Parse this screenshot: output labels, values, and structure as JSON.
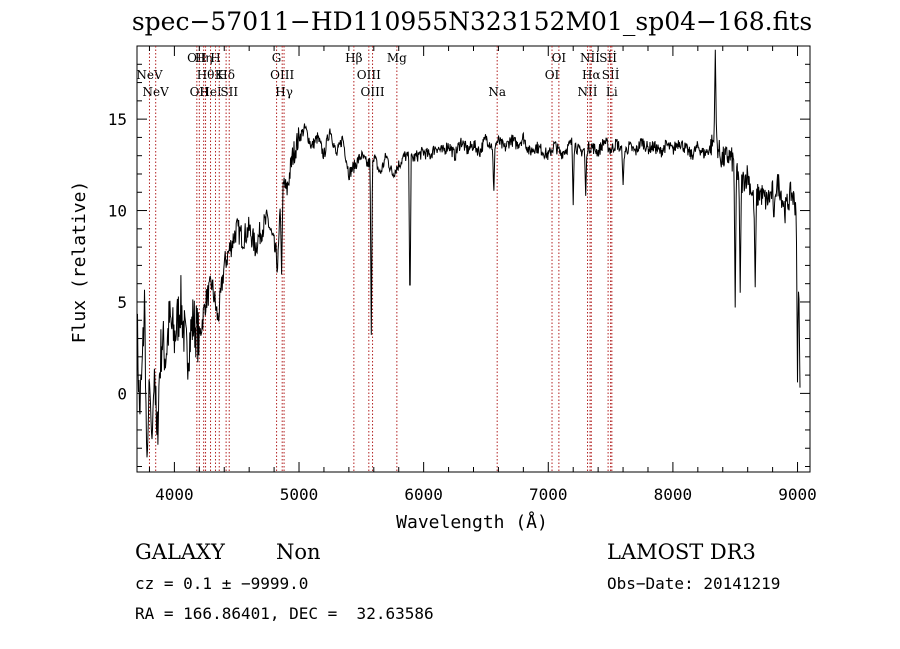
{
  "chart_data": {
    "type": "line",
    "title": "spec−57011−HD110955N323152M01_sp04−168.fits",
    "xlabel": "Wavelength (Å)",
    "ylabel": "Flux (relative)",
    "xlim": [
      3700,
      9100
    ],
    "ylim": [
      -4.3,
      19.0
    ],
    "xticks": [
      4000,
      5000,
      6000,
      7000,
      8000,
      9000
    ],
    "xtick_labels": [
      "4000",
      "5000",
      "6000",
      "7000",
      "8000",
      "9000"
    ],
    "yticks": [
      0,
      5,
      10,
      15
    ],
    "ytick_labels": [
      "0",
      "5",
      "10",
      "15"
    ],
    "grid": false,
    "line_color": "#000000",
    "marker_color": "#b22222",
    "series": [
      {
        "x": [
          3700,
          3720,
          3740,
          3760,
          3780,
          3800,
          3820,
          3840,
          3860,
          3880,
          3900,
          3930,
          3960,
          4000,
          4050,
          4100,
          4150,
          4200,
          4250,
          4300,
          4350,
          4400,
          4450,
          4500,
          4550,
          4600,
          4650,
          4700,
          4750,
          4800,
          4830,
          4850,
          4880,
          4900,
          4950,
          5000,
          5050,
          5100,
          5150,
          5200,
          5250,
          5300,
          5350,
          5400,
          5450,
          5500,
          5550,
          5600,
          5650,
          5700,
          5750,
          5800,
          5850,
          5900,
          5950,
          6000,
          6050,
          6100,
          6150,
          6200,
          6250,
          6300,
          6350,
          6400,
          6450,
          6500,
          6550,
          6600,
          6650,
          6700,
          6750,
          6800,
          6850,
          6900,
          6950,
          7000,
          7050,
          7100,
          7150,
          7200,
          7250,
          7300,
          7350,
          7400,
          7450,
          7500,
          7550,
          7600,
          7650,
          7700,
          7750,
          7800,
          7850,
          7900,
          7950,
          8000,
          8050,
          8100,
          8150,
          8200,
          8250,
          8300,
          8340,
          8380,
          8400,
          8450,
          8500,
          8550,
          8600,
          8650,
          8700,
          8750,
          8800,
          8850,
          8900,
          8950,
          9000,
          9010,
          9020
        ],
        "y": [
          4,
          -1,
          1,
          5,
          -3,
          0,
          -2,
          2,
          -3,
          1,
          3,
          2,
          4,
          3,
          5,
          2,
          4,
          3,
          5,
          6,
          4,
          7,
          8,
          9,
          8.5,
          9,
          8,
          9,
          9.5,
          8,
          7,
          10,
          11.5,
          11,
          13,
          14,
          14.5,
          13.5,
          14,
          13,
          14.5,
          13,
          14,
          12,
          12.5,
          13,
          12.5,
          13,
          12,
          13,
          12,
          12.5,
          13,
          12.8,
          13,
          13.2,
          13,
          13.5,
          13.2,
          13.6,
          13,
          13.8,
          13.3,
          13.6,
          13.2,
          14,
          13.5,
          13.8,
          13.4,
          13.9,
          13.6,
          14,
          13.2,
          13.5,
          13.3,
          13,
          13.6,
          13.1,
          13.4,
          13.8,
          13.2,
          13.4,
          13.5,
          13.2,
          13.8,
          13.3,
          13.7,
          13.1,
          13.5,
          13.2,
          13.8,
          13.4,
          13.5,
          13.2,
          13.6,
          13.3,
          13.8,
          13.4,
          13,
          13.5,
          13.1,
          13.4,
          14,
          13,
          12.8,
          13,
          12.5,
          11.5,
          12,
          10.5,
          11,
          10.5,
          11,
          11.5,
          10,
          11,
          10,
          6,
          0
        ]
      }
    ],
    "dips": [
      {
        "x": 3780,
        "y": -3.5
      },
      {
        "x": 3820,
        "y": -2.5
      },
      {
        "x": 4860,
        "y": 6.5
      },
      {
        "x": 5580,
        "y": 3.2
      },
      {
        "x": 5890,
        "y": 4.2
      },
      {
        "x": 6563,
        "y": 10.8
      },
      {
        "x": 7200,
        "y": 10.3
      },
      {
        "x": 7300,
        "y": 10.8
      },
      {
        "x": 7600,
        "y": 11.4
      },
      {
        "x": 8340,
        "y": 18.8
      },
      {
        "x": 8500,
        "y": 4.7
      },
      {
        "x": 8540,
        "y": 5.5
      },
      {
        "x": 8660,
        "y": 5.8
      },
      {
        "x": 8810,
        "y": 9.3
      },
      {
        "x": 9000,
        "y": 0.6
      }
    ],
    "line_markers": [
      {
        "x": 3800,
        "label": "NeV",
        "tier": 1
      },
      {
        "x": 3850,
        "label": "NeV",
        "tier": 2
      },
      {
        "x": 4180,
        "label": "OII",
        "tier": 0
      },
      {
        "x": 4200,
        "label": "OII",
        "tier": 2
      },
      {
        "x": 4235,
        "label": "Hη",
        "tier": 0
      },
      {
        "x": 4250,
        "label": "Hθ",
        "tier": 1
      },
      {
        "x": 4290,
        "label": "HeI",
        "tier": 2
      },
      {
        "x": 4330,
        "label": "H",
        "tier": 0
      },
      {
        "x": 4360,
        "label": "K",
        "tier": 1
      },
      {
        "x": 4415,
        "label": "Hδ",
        "tier": 1
      },
      {
        "x": 4440,
        "label": "SII",
        "tier": 2
      },
      {
        "x": 4820,
        "label": "G",
        "tier": 0
      },
      {
        "x": 4865,
        "label": "OIII",
        "tier": 1
      },
      {
        "x": 4880,
        "label": "Hγ",
        "tier": 2
      },
      {
        "x": 5440,
        "label": "Hβ",
        "tier": 0
      },
      {
        "x": 5560,
        "label": "OIII",
        "tier": 1
      },
      {
        "x": 5590,
        "label": "OIII",
        "tier": 2
      },
      {
        "x": 5785,
        "label": "Mg",
        "tier": 0
      },
      {
        "x": 6590,
        "label": "Na",
        "tier": 2
      },
      {
        "x": 7030,
        "label": "OI",
        "tier": 1
      },
      {
        "x": 7085,
        "label": "OI",
        "tier": 0
      },
      {
        "x": 7315,
        "label": "Nİİ",
        "tier": 2
      },
      {
        "x": 7335,
        "label": "Nİİ",
        "tier": 0
      },
      {
        "x": 7345,
        "label": "Hα",
        "tier": 1
      },
      {
        "x": 7480,
        "label": "Sİİ",
        "tier": 0
      },
      {
        "x": 7500,
        "label": "Sİİ",
        "tier": 1
      },
      {
        "x": 7510,
        "label": "Li",
        "tier": 2
      }
    ]
  },
  "info": {
    "class": "GALAXY",
    "subclass": "Non",
    "survey": "LAMOST DR3",
    "cz": "cz = 0.1 ± −9999.0",
    "obs_date": "Obs−Date: 20141219",
    "radec": "RA = 166.86401, DEC =  32.63586"
  }
}
